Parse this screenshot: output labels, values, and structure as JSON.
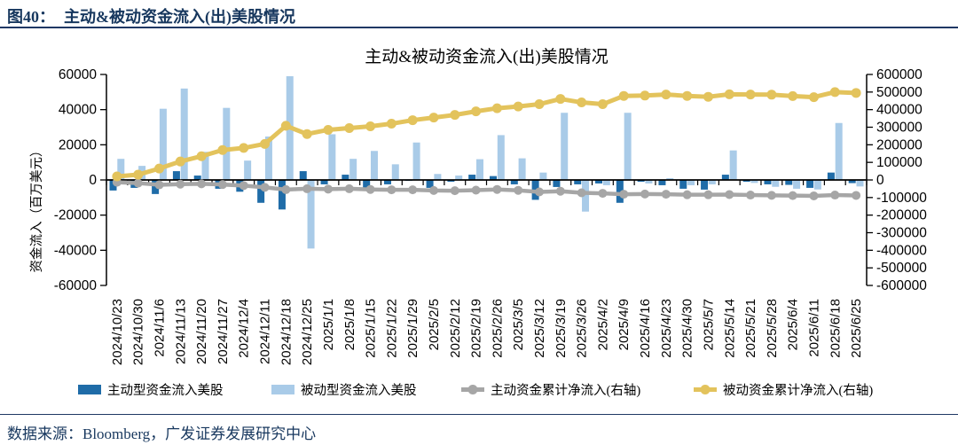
{
  "header": {
    "figure_label": "图40：",
    "figure_title": "主动&被动资金流入(出)美股情况"
  },
  "footer": {
    "source_text": "数据来源：Bloomberg，广发证券发展研究中心"
  },
  "chart_data": {
    "type": "bar-line-combo",
    "title": "主动&被动资金流入(出)美股情况",
    "grid": false,
    "legend_position": "bottom",
    "categories": [
      "2024/10/23",
      "2024/10/30",
      "2024/11/6",
      "2024/11/13",
      "2024/11/20",
      "2024/11/27",
      "2024/12/4",
      "2024/12/11",
      "2024/12/18",
      "2024/12/25",
      "2025/1/1",
      "2025/1/8",
      "2025/1/15",
      "2025/1/22",
      "2025/1/29",
      "2025/2/5",
      "2025/2/12",
      "2025/2/19",
      "2025/2/26",
      "2025/3/5",
      "2025/3/12",
      "2025/3/19",
      "2025/3/26",
      "2025/4/2",
      "2025/4/9",
      "2025/4/16",
      "2025/4/23",
      "2025/4/30",
      "2025/5/7",
      "2025/5/14",
      "2025/5/21",
      "2025/5/28",
      "2025/6/4",
      "2025/6/11",
      "2025/6/18",
      "2025/6/25"
    ],
    "left_axis": {
      "label": "资金流入（百万美元）",
      "min": -60000,
      "max": 60000,
      "step": 20000,
      "ticks": [
        60000,
        40000,
        20000,
        0,
        -20000,
        -40000,
        -60000
      ]
    },
    "right_axis": {
      "min": -600000,
      "max": 600000,
      "step": 100000,
      "ticks": [
        600000,
        500000,
        400000,
        300000,
        200000,
        100000,
        0,
        -100000,
        -200000,
        -300000,
        -400000,
        -500000,
        -600000
      ]
    },
    "series": [
      {
        "name": "主动型资金流入美股",
        "type": "bar",
        "axis": "left",
        "color": "#1F6CA8",
        "values": [
          -6000,
          -4500,
          -8000,
          5000,
          2500,
          -5000,
          -6700,
          -13000,
          -16800,
          5000,
          -2500,
          3000,
          -4700,
          -2500,
          -500,
          -4500,
          -1000,
          3000,
          2200,
          -2500,
          -11300,
          -4000,
          -2500,
          -2000,
          -13000,
          -1000,
          -3000,
          -5000,
          -5500,
          3000,
          -1000,
          -2500,
          -2800,
          -4500,
          4200,
          -1800
        ]
      },
      {
        "name": "被动型资金流入美股",
        "type": "bar",
        "axis": "left",
        "color": "#A9CBE8",
        "values": [
          12000,
          8000,
          40500,
          52000,
          16000,
          41000,
          11000,
          24700,
          59000,
          -39000,
          26000,
          12000,
          16500,
          8900,
          21300,
          3400,
          2500,
          11800,
          25500,
          12300,
          4200,
          38200,
          -18000,
          -3000,
          38200,
          -2000,
          1000,
          -3000,
          -2500,
          16800,
          -1700,
          -3900,
          -5000,
          -5400,
          32400,
          -3700
        ]
      },
      {
        "name": "主动资金累计净流入(右轴)",
        "type": "line",
        "axis": "right",
        "color": "#A6A6A6",
        "values": [
          -13000,
          -18000,
          -28000,
          -24000,
          -22000,
          -26000,
          -32000,
          -42000,
          -55000,
          -50000,
          -52000,
          -50000,
          -54000,
          -56000,
          -56000,
          -60000,
          -61000,
          -58000,
          -54000,
          -59000,
          -68000,
          -64000,
          -73000,
          -76000,
          -81000,
          -80000,
          -81000,
          -84000,
          -84000,
          -83000,
          -86000,
          -87500,
          -89000,
          -90500,
          -86000,
          -88000
        ]
      },
      {
        "name": "被动资金累计净流入(右轴)",
        "type": "line",
        "axis": "right",
        "color": "#E3C35C",
        "values": [
          20000,
          30000,
          65000,
          105000,
          135000,
          170000,
          182000,
          205000,
          308000,
          261000,
          285000,
          295000,
          305000,
          320000,
          340000,
          355000,
          370000,
          390000,
          408000,
          418000,
          431000,
          461000,
          441000,
          431000,
          478000,
          480000,
          486000,
          478000,
          473000,
          487000,
          486000,
          485000,
          477000,
          471000,
          500000,
          495000
        ]
      }
    ]
  }
}
